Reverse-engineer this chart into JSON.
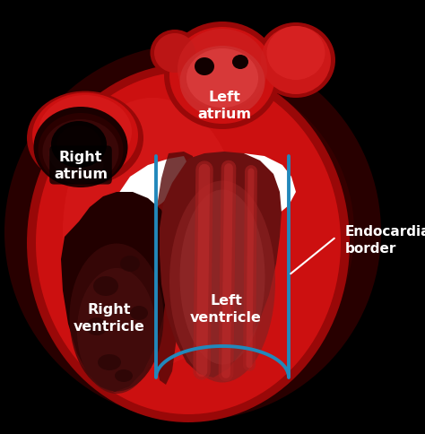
{
  "background_color": "#000000",
  "heart_red": "#cc1010",
  "heart_dark_red": "#990808",
  "heart_bright_red": "#dd2020",
  "heart_medium_red": "#b81212",
  "inner_dark": "#550000",
  "inner_very_dark": "#1a0000",
  "white": "#ffffff",
  "blue": "#2288bb",
  "text_color": "#ffffff",
  "labels": {
    "right_atrium": "Right\natrium",
    "left_atrium": "Left\natrium",
    "right_ventricle": "Right\nventricle",
    "left_ventricle": "Left\nventricle",
    "endocardial_border": "Endocardial\nborder"
  },
  "figsize": [
    4.74,
    4.85
  ],
  "dpi": 100
}
